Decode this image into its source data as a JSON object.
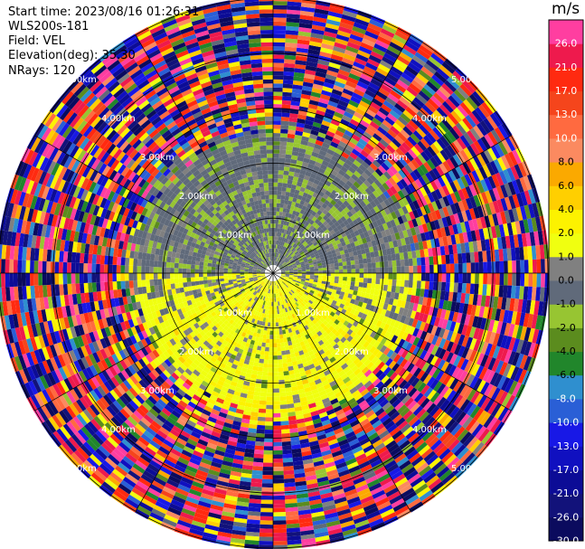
{
  "header": {
    "start_time": "Start time: 2023/08/16 01:26:31",
    "instrument": "WLS200s-181",
    "field": "Field: VEL",
    "elevation": "Elevation(deg): 35.30",
    "nrays": "NRays: 120"
  },
  "chart_data": {
    "type": "heatmap",
    "projection": "polar-ppi",
    "field": "VEL",
    "units": "m/s",
    "range_rings_km": [
      1,
      2,
      3,
      4,
      5
    ],
    "ring_labels": [
      "1.00km",
      "2.00km",
      "3.00km",
      "4.00km",
      "5.00km"
    ],
    "max_range_km": 5.0,
    "azimuth_spokes_deg": [
      0,
      30,
      60,
      90,
      120,
      150,
      180,
      210,
      240,
      270,
      300,
      330
    ],
    "nrays": 120,
    "colorbar": {
      "label": "m/s",
      "boundaries": [
        -30,
        -26,
        -21,
        -17,
        -13,
        -10,
        -8,
        -6,
        -4,
        -2,
        -1,
        0,
        1,
        2,
        4,
        6,
        8,
        10,
        13,
        17,
        21,
        26,
        30
      ],
      "tick_labels": [
        "-30.0",
        "-26.0",
        "-21.0",
        "-17.0",
        "-13.0",
        "-10.0",
        "-8.0",
        "-6.0",
        "-4.0",
        "-2.0",
        "-1.0",
        "0.0",
        "1.0",
        "2.0",
        "4.0",
        "6.0",
        "8.0",
        "10.0",
        "13.0",
        "17.0",
        "21.0",
        "26.0"
      ],
      "colors": [
        "#0b0b5e",
        "#12127a",
        "#0c0c96",
        "#1010c0",
        "#1818e6",
        "#2a5fd6",
        "#2f8fcf",
        "#21862b",
        "#5b8c1e",
        "#97c532",
        "#606a7a",
        "#808080",
        "#f0ff10",
        "#fcf200",
        "#ffcf00",
        "#fba900",
        "#fb8a60",
        "#ff6a40",
        "#f5451c",
        "#ff2a10",
        "#ee1a4d",
        "#ff3ea0"
      ]
    },
    "pattern_summary": {
      "inner_north": "light green / grey (small negative to zero)",
      "inner_south": "yellow (+1 to +2 m/s) with orange patches",
      "outer": "noisy multicolor beyond ~2.5 km"
    }
  }
}
